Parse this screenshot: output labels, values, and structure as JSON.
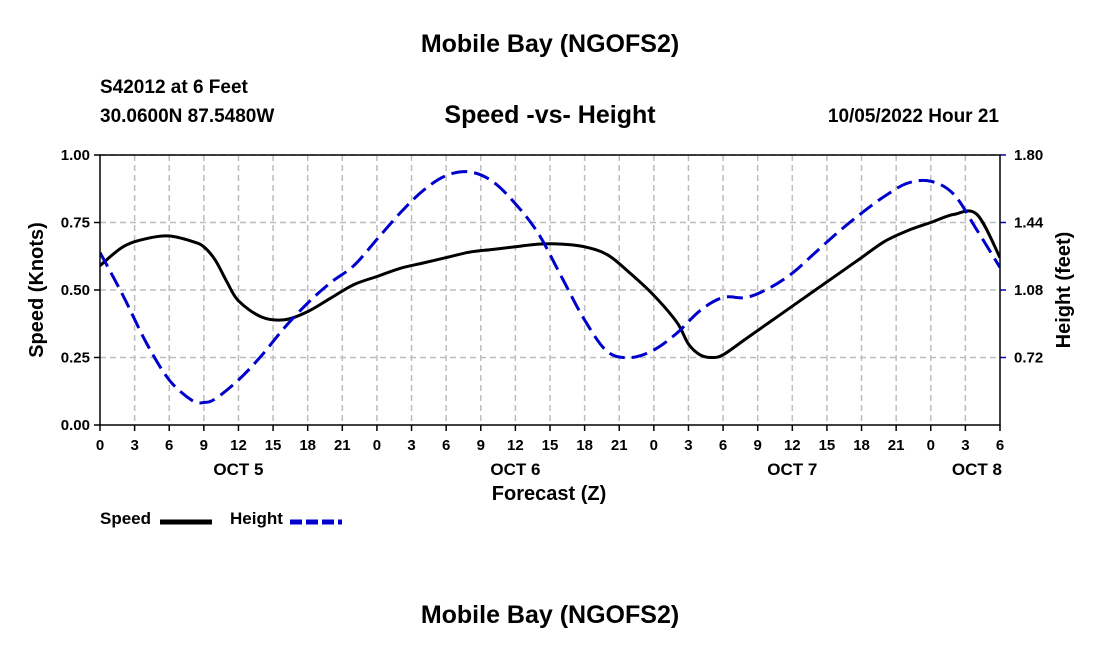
{
  "page": {
    "title": "Mobile Bay (NGOFS2)",
    "bottom_title": "Mobile Bay (NGOFS2)"
  },
  "chart_data": {
    "type": "line",
    "title": "Speed -vs- Height",
    "station": "S42012 at 6 Feet",
    "coordinates": "30.0600N  87.5480W",
    "datetime": "10/05/2022 Hour 21",
    "xlabel": "Forecast (Z)",
    "ylabel_left": "Speed (Knots)",
    "ylabel_right": "Height (feet)",
    "x_range": [
      0,
      78
    ],
    "x_ticks": [
      0,
      3,
      6,
      9,
      12,
      15,
      18,
      21,
      24,
      27,
      30,
      33,
      36,
      39,
      42,
      45,
      48,
      51,
      54,
      57,
      60,
      63,
      66,
      69,
      72,
      75,
      78
    ],
    "x_tick_labels": [
      "0",
      "3",
      "6",
      "9",
      "12",
      "15",
      "18",
      "21",
      "0",
      "3",
      "6",
      "9",
      "12",
      "15",
      "18",
      "21",
      "0",
      "3",
      "6",
      "9",
      "12",
      "15",
      "18",
      "21",
      "0",
      "3",
      "6"
    ],
    "day_labels": [
      {
        "label": "OCT 5",
        "x": 12
      },
      {
        "label": "OCT 6",
        "x": 36
      },
      {
        "label": "OCT 7",
        "x": 60
      },
      {
        "label": "OCT 8",
        "x": 76
      }
    ],
    "y_left": {
      "range": [
        0,
        1.0
      ],
      "ticks": [
        0,
        0.25,
        0.5,
        0.75,
        1.0
      ],
      "tick_labels": [
        "0.00",
        "0.25",
        "0.50",
        "0.75",
        "1.00"
      ]
    },
    "y_right": {
      "range": [
        0.36,
        1.8
      ],
      "ticks": [
        0.72,
        1.08,
        1.44,
        1.8
      ],
      "tick_labels": [
        "0.72",
        "1.08",
        "1.44",
        "1.80"
      ]
    },
    "grid": true,
    "legend": {
      "position": "bottom-left",
      "entries": [
        "Speed",
        "Height"
      ]
    },
    "series": [
      {
        "name": "Speed",
        "axis": "left",
        "color": "#000000",
        "style": "solid",
        "x": [
          0,
          2,
          4,
          6,
          8,
          9,
          10,
          11,
          12,
          14,
          16,
          18,
          20,
          22,
          24,
          26,
          28,
          30,
          32,
          34,
          36,
          38,
          40,
          42,
          44,
          46,
          48,
          50,
          51,
          52,
          53,
          54,
          56,
          58,
          60,
          62,
          64,
          66,
          68,
          70,
          72,
          74,
          76,
          78
        ],
        "values": [
          0.59,
          0.66,
          0.69,
          0.7,
          0.68,
          0.66,
          0.61,
          0.53,
          0.46,
          0.4,
          0.39,
          0.42,
          0.47,
          0.52,
          0.55,
          0.58,
          0.6,
          0.62,
          0.64,
          0.65,
          0.66,
          0.67,
          0.67,
          0.66,
          0.63,
          0.56,
          0.48,
          0.38,
          0.3,
          0.26,
          0.25,
          0.26,
          0.32,
          0.38,
          0.44,
          0.5,
          0.56,
          0.62,
          0.68,
          0.72,
          0.75,
          0.78,
          0.78,
          0.62
        ]
      },
      {
        "name": "Height",
        "axis": "right",
        "color": "#0000cc",
        "style": "dashed",
        "x": [
          0,
          2,
          4,
          6,
          8,
          9,
          10,
          12,
          14,
          16,
          18,
          20,
          22,
          24,
          26,
          28,
          30,
          32,
          34,
          36,
          38,
          40,
          42,
          44,
          46,
          48,
          50,
          52,
          54,
          56,
          58,
          60,
          62,
          64,
          66,
          68,
          70,
          72,
          74,
          76,
          78
        ],
        "values": [
          1.28,
          1.05,
          0.8,
          0.6,
          0.49,
          0.48,
          0.5,
          0.6,
          0.73,
          0.88,
          1.01,
          1.12,
          1.21,
          1.35,
          1.49,
          1.61,
          1.69,
          1.71,
          1.66,
          1.54,
          1.38,
          1.15,
          0.92,
          0.75,
          0.72,
          0.76,
          0.85,
          0.97,
          1.04,
          1.04,
          1.09,
          1.17,
          1.28,
          1.39,
          1.49,
          1.58,
          1.65,
          1.66,
          1.59,
          1.4,
          1.2
        ]
      }
    ]
  }
}
